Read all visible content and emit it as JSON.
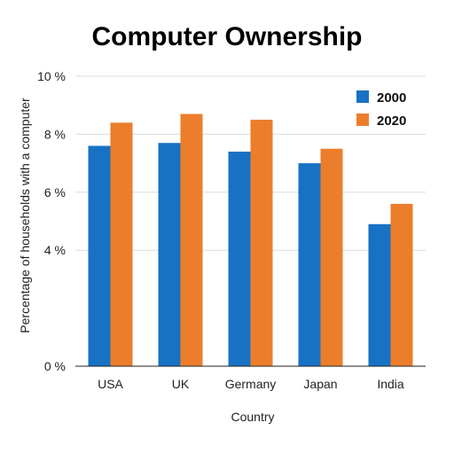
{
  "chart_data": {
    "type": "bar",
    "title": "Computer Ownership",
    "xlabel": "Country",
    "ylabel": "Percentage of households with a computer",
    "categories": [
      "USA",
      "UK",
      "Germany",
      "Japan",
      "India"
    ],
    "series": [
      {
        "name": "2000",
        "values": [
          7.6,
          7.7,
          7.4,
          7.0,
          4.9
        ],
        "color": "#1772c4"
      },
      {
        "name": "2020",
        "values": [
          8.4,
          8.7,
          8.5,
          7.5,
          5.6
        ],
        "color": "#ec7d2b"
      }
    ],
    "ylim": [
      0,
      10
    ],
    "yticks": [
      "0 %",
      "4 %",
      "6 %",
      "8 %",
      "10 %"
    ],
    "ytick_values": [
      0,
      4,
      6,
      8,
      10
    ],
    "grid": true,
    "legend_position": "top-right"
  }
}
